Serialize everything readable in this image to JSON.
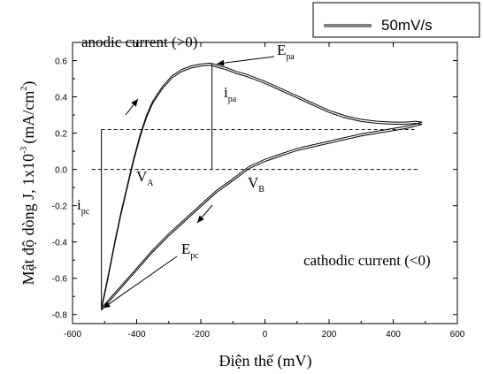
{
  "chart_data": {
    "type": "line",
    "title": "",
    "xlabel": "Điện thế (mV)",
    "ylabel_main": "Mật độ dòng J, 1x10",
    "ylabel_exp": "-3",
    "ylabel_unit": "(mA/cm",
    "ylabel_unit_exp": "2",
    "ylabel_close": ")",
    "xlim": [
      -600,
      600
    ],
    "ylim": [
      -0.85,
      0.7
    ],
    "x_ticks": [
      -600,
      -400,
      -200,
      0,
      200,
      400,
      600
    ],
    "y_ticks": [
      0.6,
      0.4,
      0.2,
      0.0,
      -0.2,
      -0.4,
      -0.6,
      -0.8
    ],
    "x_tick_labels": [
      "-600",
      "-400",
      "-200",
      "0",
      "200",
      "400",
      "600"
    ],
    "y_tick_labels": [
      "0.6",
      "0.4",
      "0.2",
      "0.0",
      "-0.2",
      "-0.4",
      "-0.6",
      "-0.8"
    ],
    "grid": false,
    "legend_position": "top-right",
    "series": [
      {
        "name": "50mV/s",
        "anodic_x": [
          -510,
          -490,
          -470,
          -450,
          -430,
          -410,
          -390,
          -370,
          -350,
          -320,
          -290,
          -260,
          -230,
          -200,
          -170,
          -150,
          -120,
          -90,
          -60,
          -30,
          0,
          50,
          100,
          150,
          200,
          250,
          300,
          350,
          400,
          440,
          470,
          490
        ],
        "anodic_y": [
          -0.77,
          -0.6,
          -0.42,
          -0.25,
          -0.1,
          0.05,
          0.18,
          0.29,
          0.37,
          0.45,
          0.51,
          0.545,
          0.565,
          0.575,
          0.58,
          0.57,
          0.555,
          0.535,
          0.52,
          0.5,
          0.48,
          0.44,
          0.4,
          0.36,
          0.32,
          0.29,
          0.27,
          0.26,
          0.255,
          0.255,
          0.26,
          0.255
        ],
        "cathodic_x": [
          490,
          450,
          400,
          350,
          300,
          250,
          200,
          150,
          100,
          50,
          0,
          -50,
          -80,
          -110,
          -150,
          -200,
          -250,
          -300,
          -350,
          -400,
          -450,
          -490,
          -510
        ],
        "cathodic_y": [
          0.255,
          0.235,
          0.22,
          0.205,
          0.19,
          0.17,
          0.15,
          0.13,
          0.11,
          0.08,
          0.05,
          0.01,
          -0.03,
          -0.07,
          -0.12,
          -0.2,
          -0.28,
          -0.36,
          -0.45,
          -0.55,
          -0.65,
          -0.73,
          -0.77
        ]
      }
    ],
    "reference_lines": [
      {
        "style": "dashed",
        "y": 0.22,
        "x_from": -510,
        "x_to": 470
      },
      {
        "style": "dashed",
        "y": 0.0,
        "x_from": -540,
        "x_to": 480
      }
    ],
    "vertical_markers": [
      {
        "x": -510,
        "y_from": -0.77,
        "y_to": 0.22
      },
      {
        "x": -165,
        "y_from": 0.0,
        "y_to": 0.58
      }
    ],
    "annotations": {
      "anodic": "anodic current (>0)",
      "cathodic": "cathodic current (<0)",
      "epa_main": "E",
      "epa_sub": "pa",
      "ipa_main": "i",
      "ipa_sub": "pa",
      "epc_main": "E",
      "epc_sub": "pc",
      "ipc_main": "i",
      "ipc_sub": "pc",
      "va_main": "V",
      "va_sub": "A",
      "vb_main": "V",
      "vb_sub": "B"
    }
  }
}
